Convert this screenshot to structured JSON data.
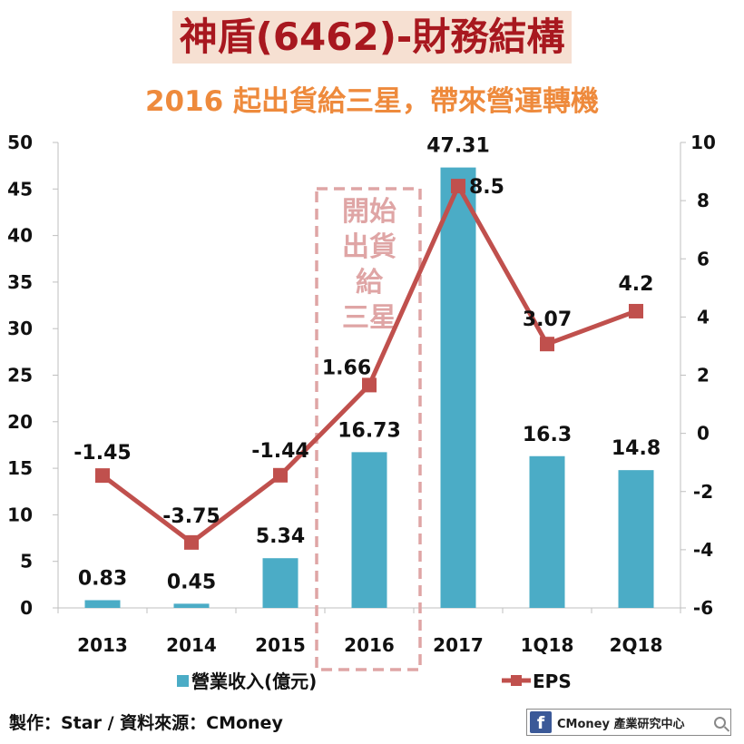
{
  "header": {
    "title": "神盾(6462)-財務結構",
    "subtitle": "2016 起出貨給三星，帶來營運轉機"
  },
  "chart_data": {
    "type": "bar",
    "categories": [
      "2013",
      "2014",
      "2015",
      "2016",
      "2017",
      "1Q18",
      "2Q18"
    ],
    "series": [
      {
        "name": "營業收入(億元)",
        "type": "bar",
        "axis": "left",
        "values": [
          0.83,
          0.45,
          5.34,
          16.73,
          47.31,
          16.3,
          14.8
        ],
        "labels": [
          "0.83",
          "0.45",
          "5.34",
          "16.73",
          "47.31",
          "16.3",
          "14.8"
        ],
        "color": "#4bacc6"
      },
      {
        "name": "EPS",
        "type": "line",
        "axis": "right",
        "values": [
          -1.45,
          -3.75,
          -1.44,
          1.66,
          8.5,
          3.07,
          4.2
        ],
        "labels": [
          "-1.45",
          "-3.75",
          "-1.44",
          "1.66",
          "8.5",
          "3.07",
          "4.2"
        ],
        "color": "#c0504d"
      }
    ],
    "y_left": {
      "range": [
        0,
        50
      ],
      "ticks": [
        "0",
        "5",
        "10",
        "15",
        "20",
        "25",
        "30",
        "35",
        "40",
        "45",
        "50"
      ]
    },
    "y_right": {
      "range": [
        -6,
        10
      ],
      "ticks": [
        "-6",
        "-4",
        "-2",
        "0",
        "2",
        "4",
        "6",
        "8",
        "10"
      ]
    },
    "annotation": {
      "lines": [
        "開始",
        "出貨",
        "給",
        "三星"
      ],
      "category": "2016",
      "color": "#dfa5a5"
    },
    "legend_position": "bottom",
    "grid": false
  },
  "footer": {
    "source": "製作：Star / 資料來源：CMoney",
    "brand": "CMoney 產業研究中心",
    "fb_icon": "f"
  }
}
